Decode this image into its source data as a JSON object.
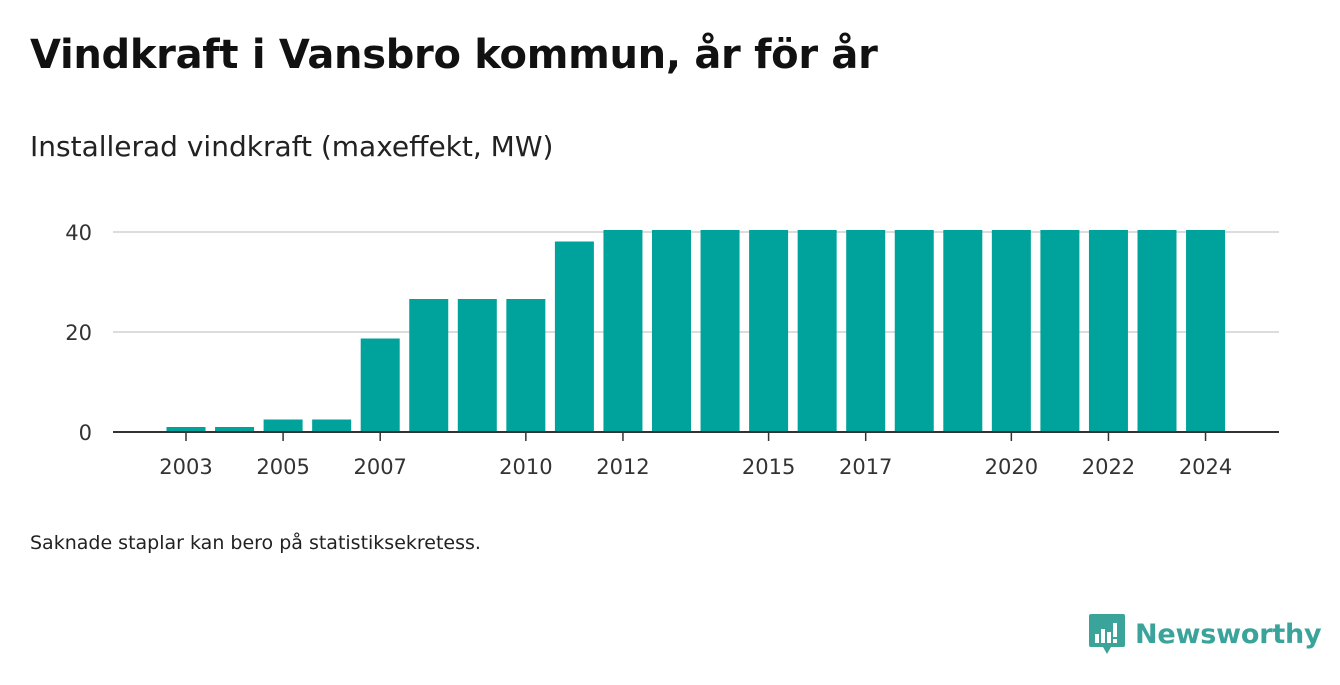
{
  "header": {
    "title": "Vindkraft i Vansbro kommun, år för år",
    "subtitle": "Installerad vindkraft (maxeffekt, MW)"
  },
  "footer": {
    "note": "Saknade staplar kan bero på statistiksekretess.",
    "brand": "Newsworthy"
  },
  "chart_data": {
    "type": "bar",
    "categories": [
      "2003",
      "2004",
      "2005",
      "2006",
      "2007",
      "2008",
      "2009",
      "2010",
      "2011",
      "2012",
      "2013",
      "2014",
      "2015",
      "2016",
      "2017",
      "2018",
      "2019",
      "2020",
      "2021",
      "2022",
      "2023",
      "2024"
    ],
    "values": [
      1,
      1,
      2.5,
      2.5,
      18.7,
      26.6,
      26.6,
      26.6,
      38.1,
      40.4,
      40.4,
      40.4,
      40.4,
      40.4,
      40.4,
      40.4,
      40.4,
      40.4,
      40.4,
      40.4,
      40.4,
      40.4
    ],
    "x_tick_labels": [
      "2003",
      "2005",
      "2007",
      "2010",
      "2012",
      "2015",
      "2017",
      "2020",
      "2022",
      "2024"
    ],
    "y_ticks": [
      0,
      20,
      40
    ],
    "ylim": [
      0,
      40.4
    ],
    "grid": true,
    "colors": {
      "bar": "#00a39b",
      "grid": "#dcdcdc",
      "axis": "#333333"
    }
  }
}
